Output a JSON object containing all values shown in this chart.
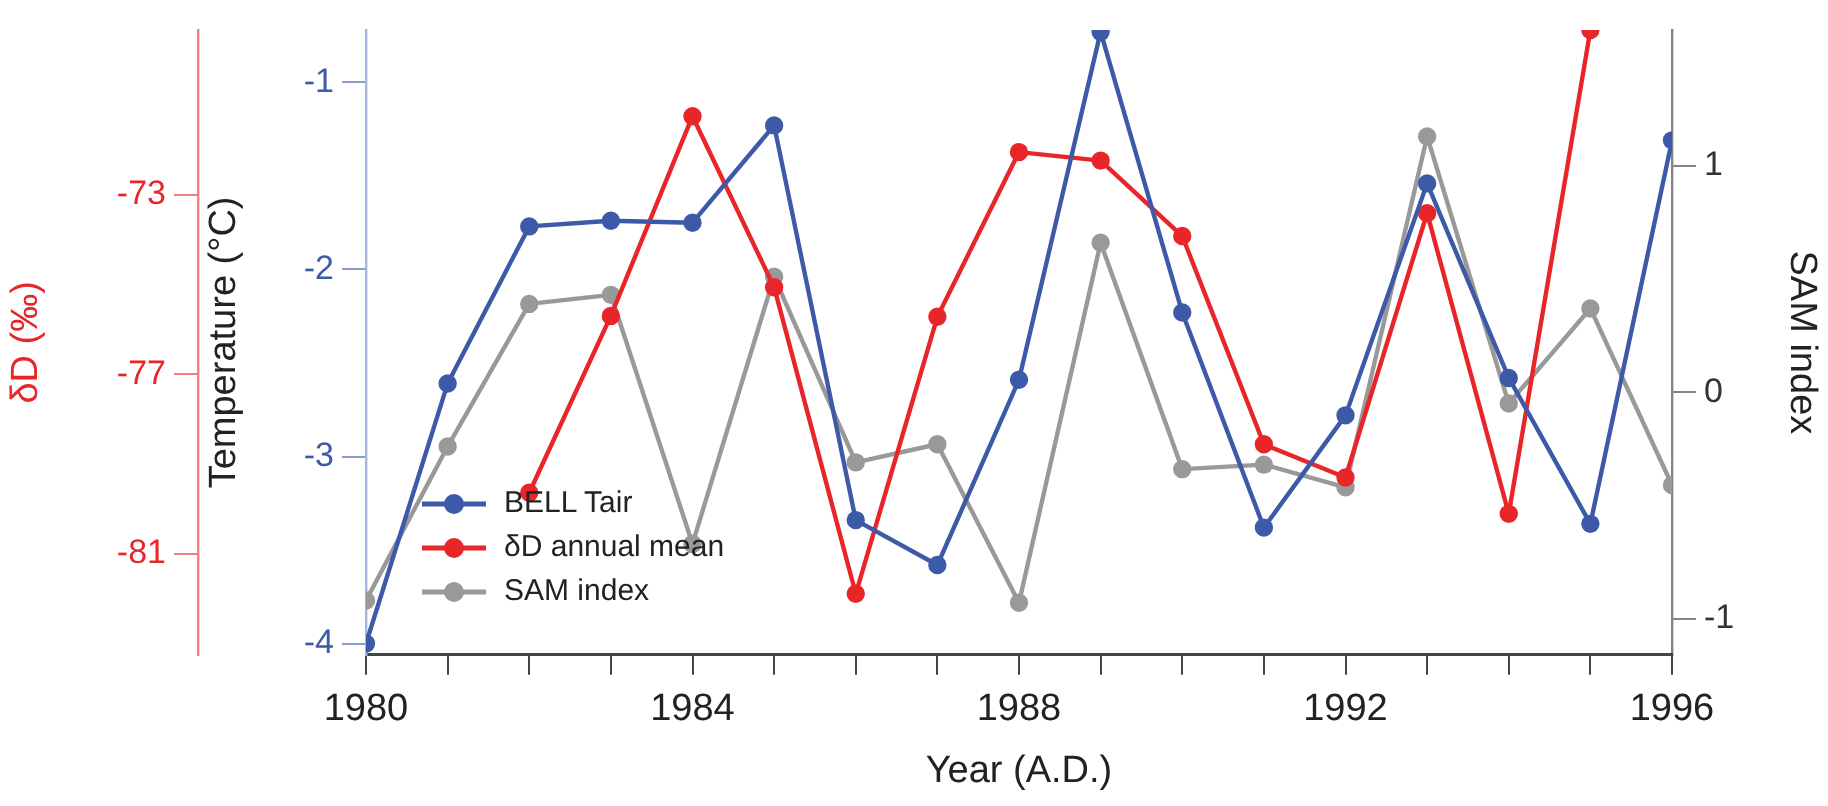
{
  "chart_data": {
    "type": "line",
    "xlabel": "Year (A.D.)",
    "ylabel": "Temperature (°C)",
    "y2label": "SAM index",
    "y3label": "δD (‰)",
    "x": [
      1980,
      1981,
      1982,
      1983,
      1984,
      1985,
      1986,
      1987,
      1988,
      1989,
      1990,
      1991,
      1992,
      1993,
      1994,
      1995,
      1996
    ],
    "xlim": [
      1980,
      1996
    ],
    "xticks": [
      1980,
      {
        "value": 1981,
        "label": null
      },
      {
        "value": 1982,
        "label": null
      },
      {
        "value": 1983,
        "label": null
      },
      1984,
      {
        "value": 1985,
        "label": null
      },
      {
        "value": 1986,
        "label": null
      },
      {
        "value": 1987,
        "label": null
      },
      1988,
      {
        "value": 1989,
        "label": null
      },
      {
        "value": 1990,
        "label": null
      },
      {
        "value": 1991,
        "label": null
      },
      1992,
      {
        "value": 1993,
        "label": null
      },
      {
        "value": 1994,
        "label": null
      },
      {
        "value": 1995,
        "label": null
      },
      1996
    ],
    "ylim": [
      -4.06,
      -0.72
    ],
    "yticks": [
      -4,
      -3,
      -2,
      -1
    ],
    "y2lim": [
      -1.16,
      1.6
    ],
    "y2ticks": [
      -1,
      0,
      1
    ],
    "y3lim": [
      -83.25,
      -69.33
    ],
    "y3ticks": [
      -81,
      -77,
      -73
    ],
    "series": [
      {
        "name": "BELL Tair",
        "color": "#3c5aa8",
        "axis": "y",
        "values": [
          -4.0,
          -2.61,
          -1.77,
          -1.74,
          -1.75,
          -1.23,
          -3.34,
          -3.58,
          -2.59,
          -0.73,
          -2.23,
          -3.38,
          -2.78,
          -1.54,
          -2.58,
          -3.36,
          -1.31
        ]
      },
      {
        "name": "δD annual mean",
        "color": "#e8262a",
        "axis": "y3",
        "x": [
          1982,
          1983,
          1984,
          1985,
          1986,
          1987,
          1988,
          1989,
          1990,
          1991,
          1992,
          1993,
          1994,
          1995
        ],
        "values": [
          -79.64,
          -75.7,
          -71.25,
          -75.06,
          -81.89,
          -75.72,
          -72.05,
          -72.24,
          -73.92,
          -78.56,
          -79.3,
          -73.41,
          -80.11,
          -69.33
        ]
      },
      {
        "name": "SAM index",
        "color": "#999999",
        "axis": "y2",
        "values": [
          -0.92,
          -0.24,
          0.39,
          0.43,
          -0.67,
          0.51,
          -0.31,
          -0.23,
          -0.93,
          0.66,
          -0.34,
          -0.32,
          -0.42,
          1.13,
          -0.05,
          0.37,
          -0.41
        ]
      }
    ],
    "marker": "circle",
    "line_style": "solid",
    "grid": false,
    "legend": "bottom left"
  }
}
